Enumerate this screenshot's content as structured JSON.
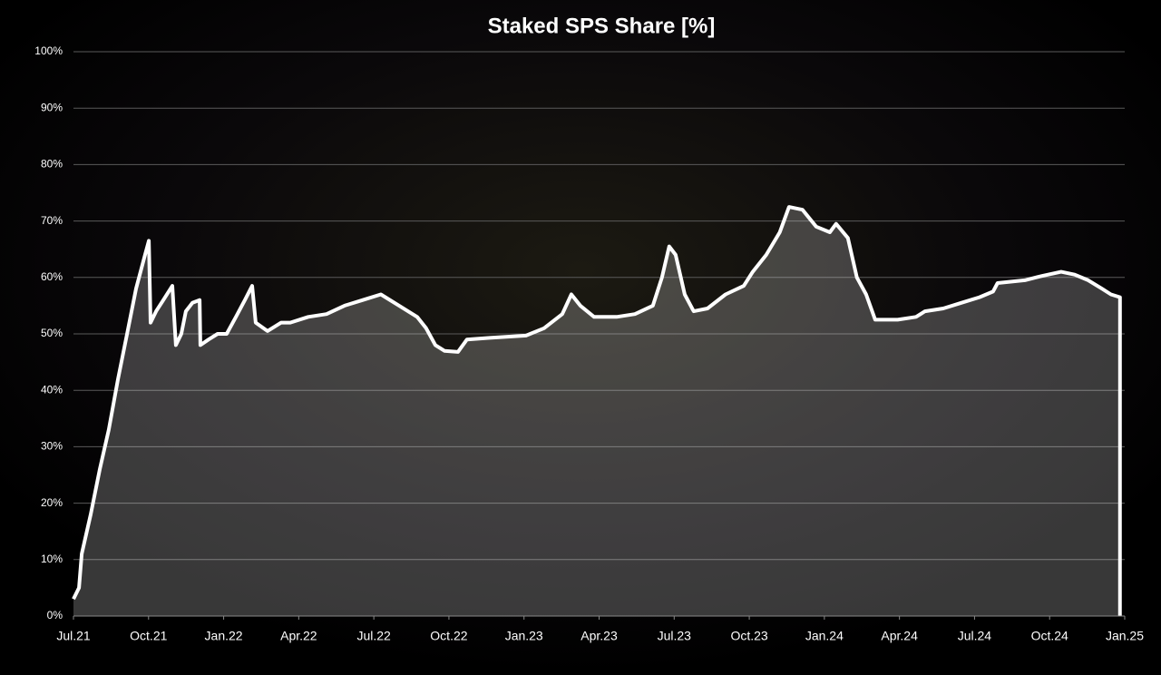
{
  "chart_data": {
    "type": "area",
    "title": "Staked SPS Share [%]",
    "x": [
      0,
      0.22,
      0.33,
      0.69,
      1.05,
      1.41,
      1.78,
      2.14,
      2.5,
      2.86,
      3.01,
      3.08,
      3.3,
      3.59,
      3.95,
      4.09,
      4.31,
      4.49,
      4.75,
      5.04,
      5.07,
      5.4,
      5.76,
      6.12,
      6.49,
      6.85,
      7.14,
      7.28,
      7.75,
      8.3,
      8.66,
      9.38,
      10.11,
      10.83,
      11.56,
      12.28,
      13.01,
      13.73,
      14.09,
      14.46,
      14.82,
      15.36,
      15.72,
      16.63,
      18.08,
      18.8,
      19.53,
      19.89,
      20.25,
      20.8,
      21.7,
      22.43,
      23.15,
      23.51,
      23.8,
      24.06,
      24.42,
      24.78,
      25.33,
      26.05,
      26.78,
      27.14,
      27.68,
      28.22,
      28.59,
      29.13,
      29.67,
      30.22,
      30.47,
      30.94,
      31.3,
      31.67,
      32.03,
      32.93,
      33.66,
      34.02,
      34.75,
      35.47,
      36.2,
      36.74,
      36.92,
      38.01,
      38.73,
      39.46,
      40,
      40.54,
      41.09,
      41.45,
      41.81
    ],
    "values": [
      3,
      5,
      11,
      18,
      26,
      33,
      42,
      50,
      58,
      64,
      66.5,
      52,
      54,
      56,
      58.5,
      48,
      50,
      54,
      55.5,
      56,
      48,
      49,
      50,
      50,
      53,
      56,
      58.5,
      52,
      50.5,
      52,
      52,
      53,
      53.5,
      55,
      56,
      57,
      55,
      53,
      51,
      48,
      47,
      46.8,
      49,
      49.3,
      49.7,
      51,
      53.5,
      57,
      55,
      53,
      53,
      53.5,
      55,
      60,
      65.5,
      64,
      57,
      54,
      54.5,
      57,
      58.5,
      61,
      64,
      68,
      72.5,
      72,
      69,
      68,
      69.5,
      67,
      60,
      57,
      52.5,
      52.5,
      53,
      54,
      54.5,
      55.5,
      56.5,
      57.5,
      59,
      59.5,
      60.3,
      61,
      60.5,
      59.5,
      58,
      57,
      56.5
    ],
    "color": "#ffffff",
    "xlim": [
      0,
      42
    ],
    "xticks": [
      {
        "value": 0,
        "label": "Jul.21"
      },
      {
        "value": 3,
        "label": "Oct.21"
      },
      {
        "value": 6,
        "label": "Jan.22"
      },
      {
        "value": 9,
        "label": "Apr.22"
      },
      {
        "value": 12,
        "label": "Jul.22"
      },
      {
        "value": 15,
        "label": "Oct.22"
      },
      {
        "value": 18,
        "label": "Jan.23"
      },
      {
        "value": 21,
        "label": "Apr.23"
      },
      {
        "value": 24,
        "label": "Jul.23"
      },
      {
        "value": 27,
        "label": "Oct.23"
      },
      {
        "value": 30,
        "label": "Jan.24"
      },
      {
        "value": 33,
        "label": "Apr.24"
      },
      {
        "value": 36,
        "label": "Jul.24"
      },
      {
        "value": 39,
        "label": "Oct.24"
      },
      {
        "value": 42,
        "label": "Jan.25"
      }
    ],
    "ylim": [
      0,
      100
    ],
    "yticks": [
      {
        "value": 0,
        "label": "0%"
      },
      {
        "value": 10,
        "label": "10%"
      },
      {
        "value": 20,
        "label": "20%"
      },
      {
        "value": 30,
        "label": "30%"
      },
      {
        "value": 40,
        "label": "40%"
      },
      {
        "value": 50,
        "label": "50%"
      },
      {
        "value": 60,
        "label": "60%"
      },
      {
        "value": 70,
        "label": "70%"
      },
      {
        "value": 80,
        "label": "80%"
      },
      {
        "value": 90,
        "label": "90%"
      },
      {
        "value": 100,
        "label": "100%"
      }
    ],
    "grid": true
  }
}
